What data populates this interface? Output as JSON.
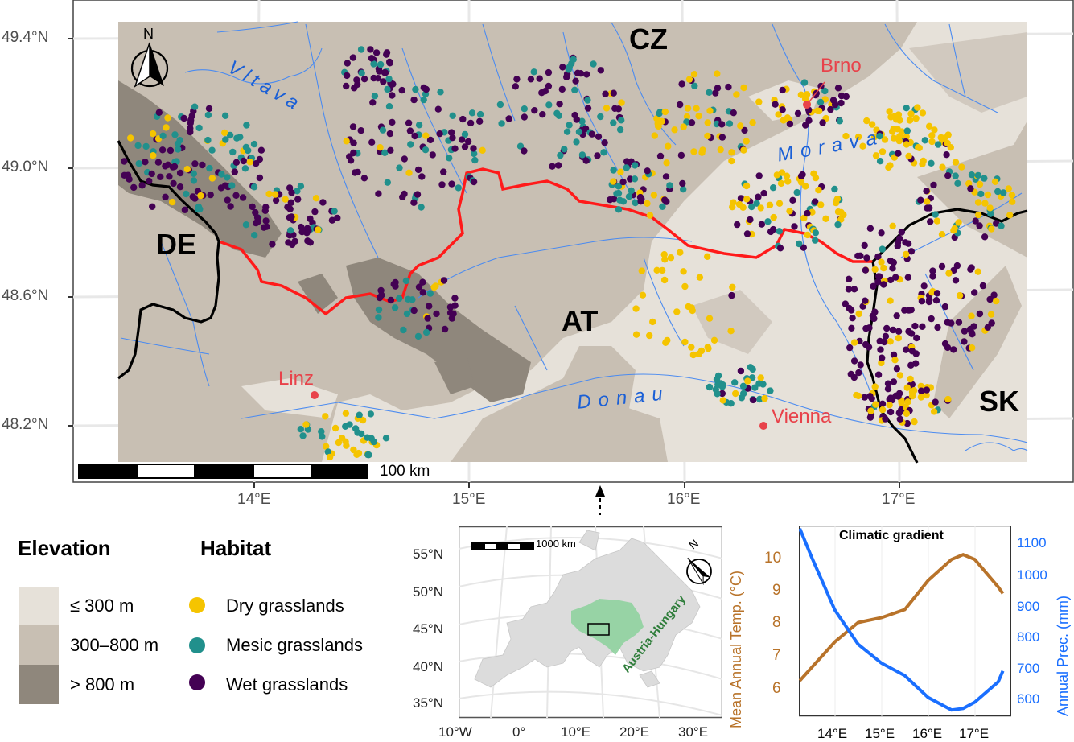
{
  "main_map": {
    "axes": {
      "y_ticks": [
        "49.4°N",
        "49.0°N",
        "48.6°N",
        "48.2°N"
      ],
      "x_ticks": [
        "14°E",
        "15°E",
        "16°E",
        "17°E"
      ]
    },
    "country_labels": [
      "CZ",
      "DE",
      "AT",
      "SK"
    ],
    "city_labels": [
      "Brno",
      "Linz",
      "Vienna"
    ],
    "river_labels": [
      "Vltava",
      "Morava",
      "Donau"
    ],
    "scale_bar": {
      "label": "100 km"
    },
    "north_arrow": {
      "label": "N"
    },
    "colors": {
      "low_elev": "#e6e1d9",
      "mid_elev": "#c8bfb3",
      "high_elev": "#8f877c",
      "river": "#4b8bf0",
      "historic_border": "#ff1a1a",
      "national_border": "#000000",
      "city": "#e8424a",
      "dry": "#f5c400",
      "mesic": "#21908c",
      "wet": "#440154"
    }
  },
  "legend": {
    "elevation": {
      "title": "Elevation",
      "items": [
        {
          "label": "≤ 300 m",
          "color": "#e6e1d9"
        },
        {
          "label": "300–800 m",
          "color": "#c8bfb3"
        },
        {
          "label": "> 800 m",
          "color": "#8f877c"
        }
      ]
    },
    "habitat": {
      "title": "Habitat",
      "items": [
        {
          "label": "Dry grasslands",
          "color": "#f5c400"
        },
        {
          "label": "Mesic grasslands",
          "color": "#21908c"
        },
        {
          "label": "Wet grasslands",
          "color": "#440154"
        }
      ]
    }
  },
  "inset_map": {
    "y_ticks": [
      "55°N",
      "50°N",
      "45°N",
      "40°N",
      "35°N"
    ],
    "x_ticks": [
      "10°W",
      "0°",
      "10°E",
      "20°E",
      "30°E"
    ],
    "scale_bar_label": "1000 km",
    "region_label": "Austria-Hungary",
    "north_label": "N",
    "region_color": "#8fd19e",
    "region_label_color": "#2e7d3a"
  },
  "chart_data": {
    "type": "line",
    "title": "Climatic gradient",
    "xlabel": "",
    "x_ticks": [
      "14°E",
      "15°E",
      "16°E",
      "17°E"
    ],
    "x": [
      13.25,
      13.5,
      14.0,
      14.5,
      15.0,
      15.5,
      16.0,
      16.5,
      16.75,
      17.0,
      17.5,
      17.6
    ],
    "series": [
      {
        "name": "Mean Annual Temp. (°C)",
        "axis": "left",
        "color": "#b8732a",
        "values": [
          6.1,
          6.5,
          7.3,
          7.9,
          8.05,
          8.3,
          9.2,
          9.85,
          10.0,
          9.85,
          9.0,
          8.8
        ]
      },
      {
        "name": "Annual Prec. (mm)",
        "axis": "right",
        "color": "#1a6fff",
        "values": [
          1130,
          1040,
          870,
          760,
          700,
          660,
          590,
          550,
          555,
          575,
          640,
          675
        ]
      }
    ],
    "ylabel_left": "Mean Annual Temp. (°C)",
    "ylabel_right": "Annual Prec. (mm)",
    "y_left_ticks": [
      "6",
      "7",
      "8",
      "9",
      "10"
    ],
    "y_right_ticks": [
      "600",
      "700",
      "800",
      "900",
      "1000",
      "1100"
    ],
    "ylim_left": [
      5.0,
      10.9
    ],
    "ylim_right": [
      530,
      1140
    ]
  }
}
